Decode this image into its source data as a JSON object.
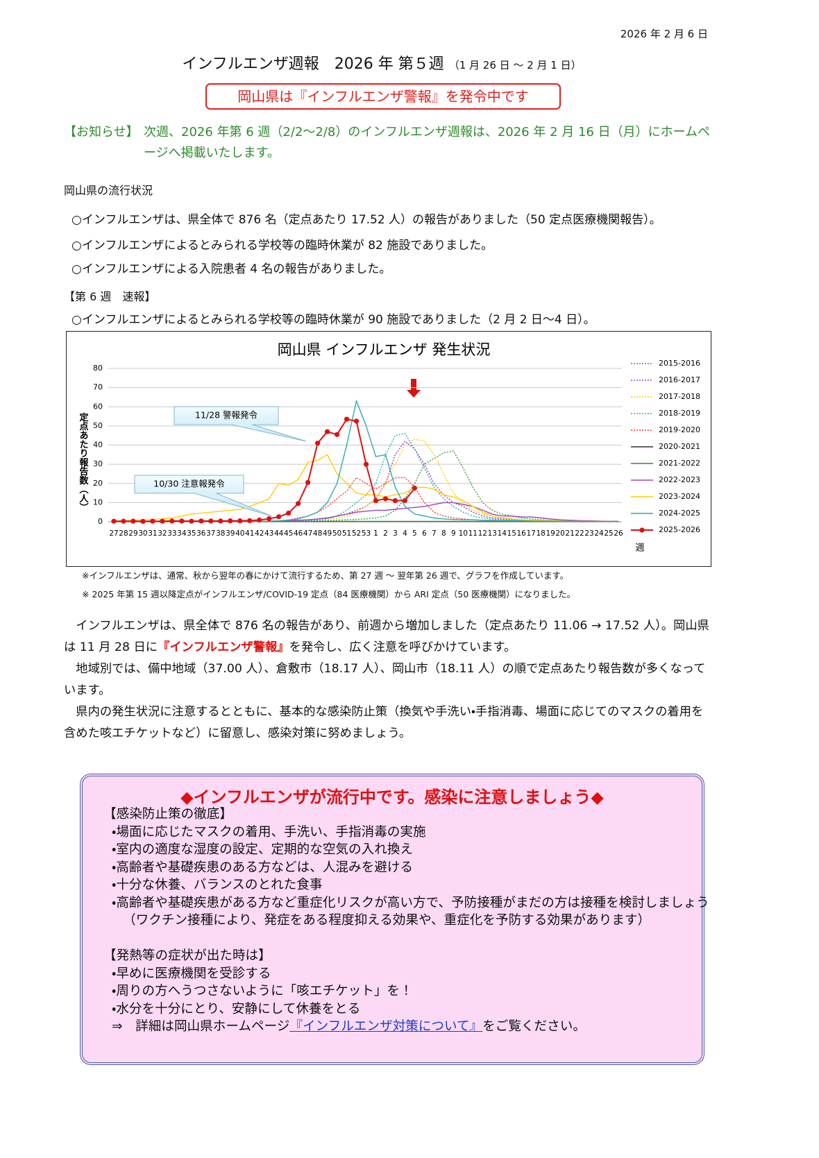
{
  "date": "2026 年 2 月 6 日",
  "title": "インフルエンザ週報　2026 年 第５週",
  "title_period": "（1 月 26 日 〜 2 月 1 日）",
  "alert": "岡山県は『インフルエンザ警報』を発令中です",
  "notice": {
    "label": "【お知らせ】",
    "text": "次週、2026 年第 6 週（2/2〜2/8）のインフルエンザ週報は、2026 年 2 月 16 日（月）にホームページへ掲載いたします。"
  },
  "status": {
    "heading": "岡山県の流行状況",
    "items": [
      "○インフルエンザは、県全体で 876 名（定点あたり 17.52 人）の報告がありました（50 定点医療機関報告）。",
      "○インフルエンザによるとみられる学校等の臨時休業が 82 施設でありました。",
      "○インフルエンザによる入院患者 4 名の報告がありました。"
    ]
  },
  "flash": {
    "heading": "【第 6 週　速報】",
    "items": [
      "○インフルエンザによるとみられる学校等の臨時休業が 90 施設でありました（2 月 2 日〜4 日）。"
    ]
  },
  "chart_data": {
    "type": "line",
    "title": "岡山県 インフルエンザ 発生状況",
    "x_label": "週",
    "y_label": "定点あたり報告数（人）",
    "categories": [
      "27",
      "28",
      "29",
      "30",
      "31",
      "32",
      "33",
      "34",
      "35",
      "36",
      "37",
      "38",
      "39",
      "40",
      "41",
      "42",
      "43",
      "44",
      "45",
      "46",
      "47",
      "48",
      "49",
      "50",
      "51",
      "52",
      "53",
      "1",
      "2",
      "3",
      "4",
      "5",
      "6",
      "7",
      "8",
      "9",
      "10",
      "11",
      "12",
      "13",
      "14",
      "15",
      "16",
      "17",
      "18",
      "19",
      "20",
      "21",
      "22",
      "23",
      "24",
      "25",
      "26"
    ],
    "ylim": [
      0,
      80
    ],
    "yticks": [
      0,
      10,
      20,
      30,
      40,
      50,
      60,
      70,
      80
    ],
    "grid": true,
    "annotations": [
      "11/28 警報発令",
      "10/30 注意報発令"
    ],
    "series": [
      {
        "name": "2015-2016",
        "color": "#3a9a3a",
        "style": "dotted",
        "values": [
          0,
          0,
          0,
          0,
          0,
          0,
          0,
          0,
          0,
          0,
          0,
          0,
          0,
          0,
          0,
          0.1,
          0.1,
          0.2,
          0.2,
          0.3,
          0.4,
          0.5,
          0.6,
          0.8,
          1,
          1.2,
          1.5,
          2,
          3,
          6,
          12,
          20,
          30,
          33,
          36,
          37,
          28,
          18,
          10,
          6,
          4,
          3,
          2,
          1.5,
          1,
          0.8,
          0.6,
          0.5,
          0.4,
          0.3,
          0.2,
          0.2,
          0.1
        ]
      },
      {
        "name": "2016-2017",
        "color": "#a040c0",
        "style": "dotted",
        "values": [
          0,
          0,
          0,
          0,
          0,
          0,
          0,
          0,
          0,
          0,
          0,
          0,
          0,
          0,
          0,
          0.1,
          0.2,
          0.3,
          0.5,
          0.7,
          1,
          1.5,
          2,
          3,
          4,
          6,
          8,
          12,
          20,
          35,
          42,
          38,
          30,
          20,
          14,
          10,
          8,
          5,
          3,
          2,
          1.5,
          1,
          0.8,
          0.6,
          0.5,
          0.4,
          0.3,
          0.2,
          0.2,
          0.1,
          0.1,
          0.1,
          0.1
        ]
      },
      {
        "name": "2017-2018",
        "color": "#ffcc00",
        "style": "dotted",
        "values": [
          0,
          0,
          0,
          0,
          0,
          0,
          0,
          0,
          0,
          0,
          0,
          0,
          0,
          0,
          0,
          0.1,
          0.2,
          0.3,
          0.4,
          0.6,
          0.8,
          1,
          1.5,
          2,
          3,
          5,
          8,
          12,
          20,
          30,
          40,
          43,
          42,
          35,
          25,
          15,
          10,
          6,
          4,
          3,
          2,
          1.5,
          1,
          0.8,
          0.6,
          0.5,
          0.4,
          0.3,
          0.2,
          0.2,
          0.1,
          0.1,
          0.1
        ]
      },
      {
        "name": "2018-2019",
        "color": "#30a8b0",
        "style": "dotted",
        "values": [
          0,
          0,
          0,
          0,
          0,
          0,
          0,
          0,
          0,
          0,
          0,
          0,
          0,
          0,
          0,
          0.1,
          0.1,
          0.2,
          0.3,
          0.5,
          0.8,
          1,
          1.5,
          3,
          6,
          10,
          14,
          20,
          35,
          45,
          46,
          38,
          28,
          18,
          12,
          8,
          5,
          3,
          2,
          1.5,
          1,
          0.8,
          0.6,
          0.5,
          0.4,
          0.3,
          0.2,
          0.2,
          0.1,
          0.1,
          0.1,
          0.1,
          0.1
        ]
      },
      {
        "name": "2019-2020",
        "color": "#ff3030",
        "style": "dotted",
        "values": [
          0,
          0,
          0,
          0,
          0,
          0,
          0,
          0,
          0,
          0,
          0,
          0,
          0,
          0,
          0,
          0.2,
          0.3,
          0.5,
          1,
          2,
          3,
          5,
          8,
          12,
          16,
          23,
          20,
          17,
          20,
          23,
          23,
          18,
          10,
          5,
          3,
          2,
          1.5,
          1,
          0.8,
          0.5,
          0.4,
          0.3,
          0.2,
          0.2,
          0.1,
          0.1,
          0.1,
          0.1,
          0,
          0,
          0,
          0,
          0
        ]
      },
      {
        "name": "2020-2021",
        "color": "#303030",
        "style": "solid",
        "values": [
          0.1,
          0.1,
          0.1,
          0.1,
          0.1,
          0.1,
          0.1,
          0.1,
          0.1,
          0.1,
          0.1,
          0.1,
          0.1,
          0.1,
          0.1,
          0.1,
          0.1,
          0.1,
          0.1,
          0.1,
          0.1,
          0.1,
          0.1,
          0.1,
          0.1,
          0.1,
          0.1,
          0.1,
          0.1,
          0.1,
          0.1,
          0.1,
          0.1,
          0.1,
          0.1,
          0.1,
          0.1,
          0.1,
          0.1,
          0.1,
          0.1,
          0.1,
          0.1,
          0.1,
          0.1,
          0.1,
          0.1,
          0.1,
          0.1,
          0.1,
          0.1,
          0.1,
          0.1
        ]
      },
      {
        "name": "2021-2022",
        "color": "#2e8b2e",
        "style": "solid",
        "values": [
          0.2,
          0.2,
          0.2,
          0.2,
          0.2,
          0.2,
          0.2,
          0.2,
          0.2,
          0.2,
          0.2,
          0.2,
          0.2,
          0.2,
          0.2,
          0.2,
          0.2,
          0.2,
          0.2,
          0.2,
          0.2,
          0.2,
          0.2,
          0.2,
          0.2,
          0.2,
          0.2,
          0.2,
          0.2,
          0.2,
          0.2,
          0.2,
          0.2,
          0.2,
          0.2,
          0.2,
          0.2,
          0.2,
          0.2,
          0.2,
          0.2,
          0.2,
          0.2,
          0.2,
          0.2,
          0.2,
          0.2,
          0.2,
          0.2,
          0.2,
          0.2,
          0.2,
          0.2
        ]
      },
      {
        "name": "2022-2023",
        "color": "#a040c0",
        "style": "solid",
        "values": [
          0.1,
          0.1,
          0.1,
          0.1,
          0.1,
          0.1,
          0.1,
          0.1,
          0.1,
          0.1,
          0.1,
          0.1,
          0.1,
          0.1,
          0.1,
          0.2,
          0.3,
          0.4,
          0.6,
          0.8,
          1,
          1.5,
          2,
          3,
          4,
          5,
          5.5,
          6,
          6,
          6.5,
          7,
          7.5,
          8,
          9,
          10,
          10,
          9,
          8,
          6,
          4,
          3,
          3,
          2.5,
          2.5,
          2,
          1.5,
          1,
          0.8,
          0.6,
          0.5,
          0.4,
          0.3,
          0.2
        ]
      },
      {
        "name": "2023-2024",
        "color": "#ffcc00",
        "style": "solid",
        "values": [
          0.5,
          0.5,
          0.8,
          1,
          1.2,
          1.5,
          2,
          3,
          4,
          4.5,
          5,
          5.5,
          6,
          6.5,
          8,
          10,
          12,
          20,
          19,
          22,
          31,
          32,
          35,
          25,
          20,
          15,
          14,
          14,
          13,
          14,
          15,
          18,
          18,
          17,
          14,
          13,
          11,
          8,
          5,
          3,
          2,
          1.5,
          1,
          0.8,
          0.6,
          0.5,
          0.4,
          0.3,
          0.3,
          0.2,
          0.2,
          0.2,
          0.1
        ]
      },
      {
        "name": "2024-2025",
        "color": "#30a8b0",
        "style": "solid",
        "values": [
          0.1,
          0.1,
          0.1,
          0.1,
          0.1,
          0.1,
          0.1,
          0.1,
          0.1,
          0.1,
          0.1,
          0.1,
          0.1,
          0.1,
          0.1,
          0.2,
          0.3,
          0.5,
          0.8,
          1.5,
          3,
          5,
          10,
          20,
          40,
          63,
          50,
          34,
          35,
          18,
          8,
          4,
          3,
          2,
          1.5,
          1.2,
          1,
          1,
          0.8,
          0.8,
          0.6,
          0.5,
          0.5,
          0.4,
          0.3,
          0.3,
          0.2,
          0.2,
          0.2,
          0.1,
          0.1,
          0.1,
          0.1
        ]
      },
      {
        "name": "2025-2026",
        "color": "#e01010",
        "style": "solid",
        "marker": true,
        "values": [
          0.3,
          0.3,
          0.3,
          0.2,
          0.3,
          0.3,
          0.4,
          0.4,
          0.3,
          0.4,
          0.4,
          0.4,
          0.5,
          0.5,
          0.6,
          0.9,
          1.6,
          2.6,
          4.5,
          9.5,
          20.5,
          41,
          47,
          45.5,
          53.5,
          52.5,
          30,
          11,
          12,
          11,
          11.06,
          17.52,
          null,
          null,
          null,
          null,
          null,
          null,
          null,
          null,
          null,
          null,
          null,
          null,
          null,
          null,
          null,
          null,
          null,
          null,
          null,
          null,
          null
        ]
      }
    ]
  },
  "chart_notes": [
    "※インフルエンザは、通常、秋から翌年の春にかけて流行するため、第 27 週 〜 翌年第 26 週で、グラフを作成しています。",
    "※ 2025 年第 15 週以降定点がインフルエンザ/COVID-19 定点（84 医療機関）から ARI 定点（50 医療機関）になりました。"
  ],
  "body": [
    [
      "インフルエンザは、県全体で 876 名の報告があり、前週から増加しました（定点あたり 11.06 → 17.52 人）。岡山県は 11 月 28 日に",
      "『インフルエンザ警報』",
      "を発令し、広く注意を呼びかけています。"
    ],
    [
      "地域別では、備中地域（37.00 人）、倉敷市（18.17 人）、岡山市（18.11 人）の順で定点あたり報告数が多くなっています。"
    ],
    [
      "県内の発生状況に注意するとともに、基本的な感染防止策（換気や手洗い・手指消毒、場面に応じてのマスクの着用を含めた咳エチケットなど）に留意し、感染対策に努めましょう。"
    ]
  ],
  "box": {
    "title": "◆インフルエンザが流行中です。感染に注意しましょう◆",
    "prevention": {
      "heading": "【感染防止策の徹底】",
      "items": [
        "・場面に応じたマスクの着用、手洗い、手指消毒の実施",
        "・室内の適度な湿度の設定、定期的な空気の入れ換え",
        "・高齢者や基礎疾患のある方などは、人混みを避ける",
        "・十分な休養、バランスのとれた食事",
        "・高齢者や基礎疾患がある方など重症化リスクが高い方で、予防接種がまだの方は接種を検討しましょう"
      ],
      "note": "（ワクチン接種により、発症をある程度抑える効果や、重症化を予防する効果があります）"
    },
    "symptoms": {
      "heading": "【発熱等の症状が出た時は】",
      "items": [
        "・早めに医療機関を受診する",
        "・周りの方へうつさないように「咳エチケット」を！",
        "・水分を十分にとり、安静にして休養をとる"
      ]
    },
    "link": {
      "prefix": "⇒　詳細は岡山県ホームページ",
      "text": "『インフルエンザ対策について』",
      "suffix": "をご覧ください。"
    }
  }
}
